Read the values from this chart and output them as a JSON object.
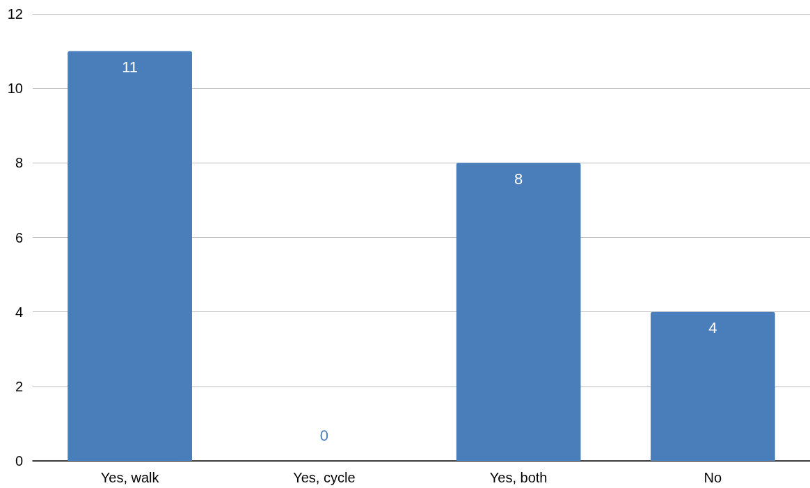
{
  "chart_data": {
    "type": "bar",
    "categories": [
      "Yes, walk",
      "Yes, cycle",
      "Yes, both",
      "No"
    ],
    "values": [
      11,
      0,
      8,
      4
    ],
    "color": "#4a7ebb",
    "ylim": [
      0,
      12
    ],
    "yticks": [
      0,
      2,
      4,
      6,
      8,
      10,
      12
    ],
    "grid": "y",
    "data_labels": true
  }
}
